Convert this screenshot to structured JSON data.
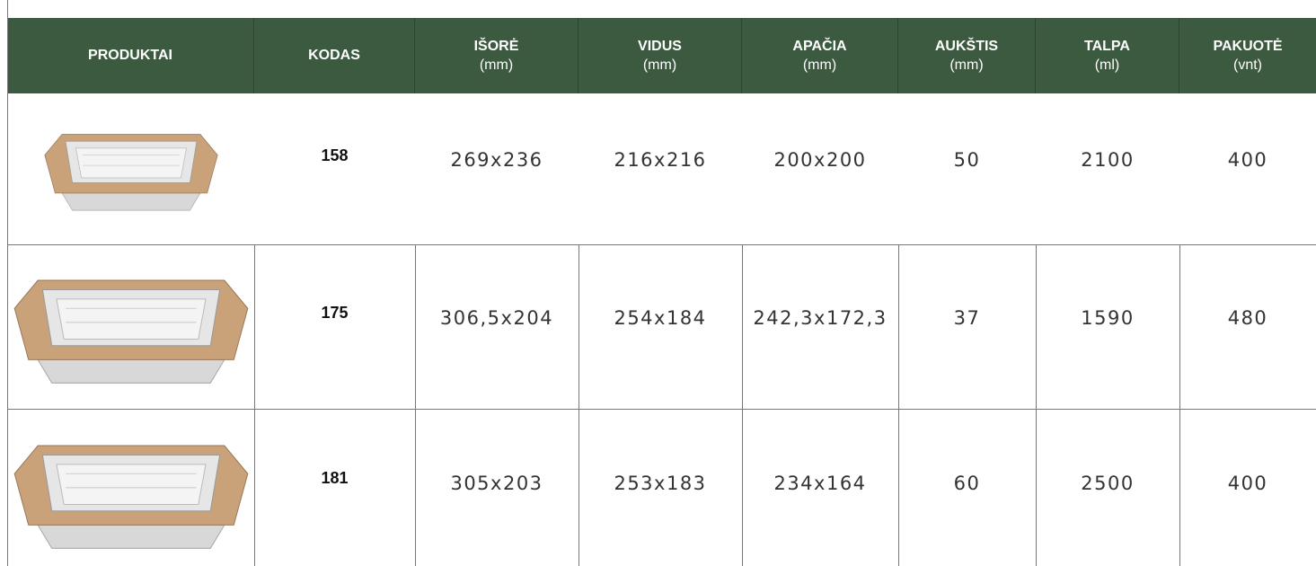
{
  "table": {
    "columns": [
      {
        "title": "PRODUKTAI"
      },
      {
        "title": "KODAS"
      },
      {
        "title": "IŠORĖ",
        "unit": "(mm)"
      },
      {
        "title": "VIDUS",
        "unit": "(mm)"
      },
      {
        "title": "APAČIA",
        "unit": "(mm)"
      },
      {
        "title": "AUKŠTIS",
        "unit": "(mm)"
      },
      {
        "title": "TALPA",
        "unit": "(ml)"
      },
      {
        "title": "PAKUOTĖ",
        "unit": "(vnt)"
      }
    ],
    "rows": [
      {
        "code": "158",
        "cells": [
          "269x236",
          "216x216",
          "200x200",
          "50",
          "2100",
          "400"
        ]
      },
      {
        "code": "175",
        "cells": [
          "306,5x204",
          "254x184",
          "242,3x172,3",
          "37",
          "1590",
          "480"
        ]
      },
      {
        "code": "181",
        "cells": [
          "305x203",
          "253x183",
          "234x164",
          "60",
          "2500",
          "400"
        ]
      }
    ]
  }
}
